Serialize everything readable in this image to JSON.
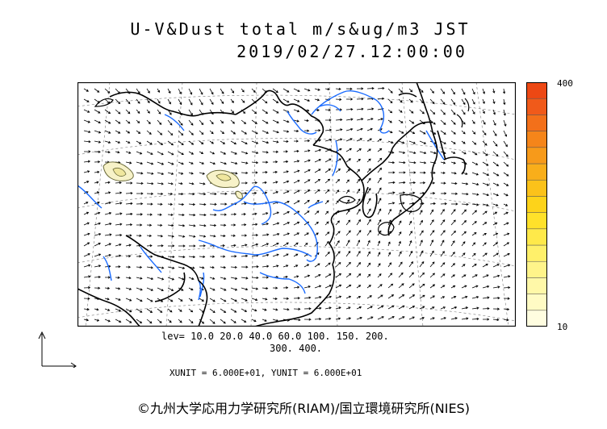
{
  "header": {
    "title": "U-V&Dust total m/s&ug/m3 JST",
    "datetime": "2019/02/27.12:00:00"
  },
  "colorbar": {
    "max_label": "400",
    "min_label": "10",
    "colors": [
      "#fffde0",
      "#fffbc4",
      "#fff8a8",
      "#fff48a",
      "#fff06a",
      "#ffe94a",
      "#ffe12a",
      "#fdd31a",
      "#fbc21a",
      "#f9ae1a",
      "#f79a1a",
      "#f5851a",
      "#f3701a",
      "#f05a1a",
      "#ed4814"
    ]
  },
  "levels": {
    "line1": "lev= 10.0 20.0 40.0 60.0 100. 150. 200.",
    "line2": "300. 400."
  },
  "units": {
    "text": "XUNIT = 6.000E+01, YUNIT = 6.000E+01"
  },
  "footer": {
    "copyright": "©九州大学応用力学研究所(RIAM)/国立環境研究所(NIES)"
  },
  "map_colors": {
    "coast": "#000000",
    "river": "#1a6bff",
    "dust_fill": "#f7f2c8",
    "dust_line": "#6b6b3a"
  }
}
